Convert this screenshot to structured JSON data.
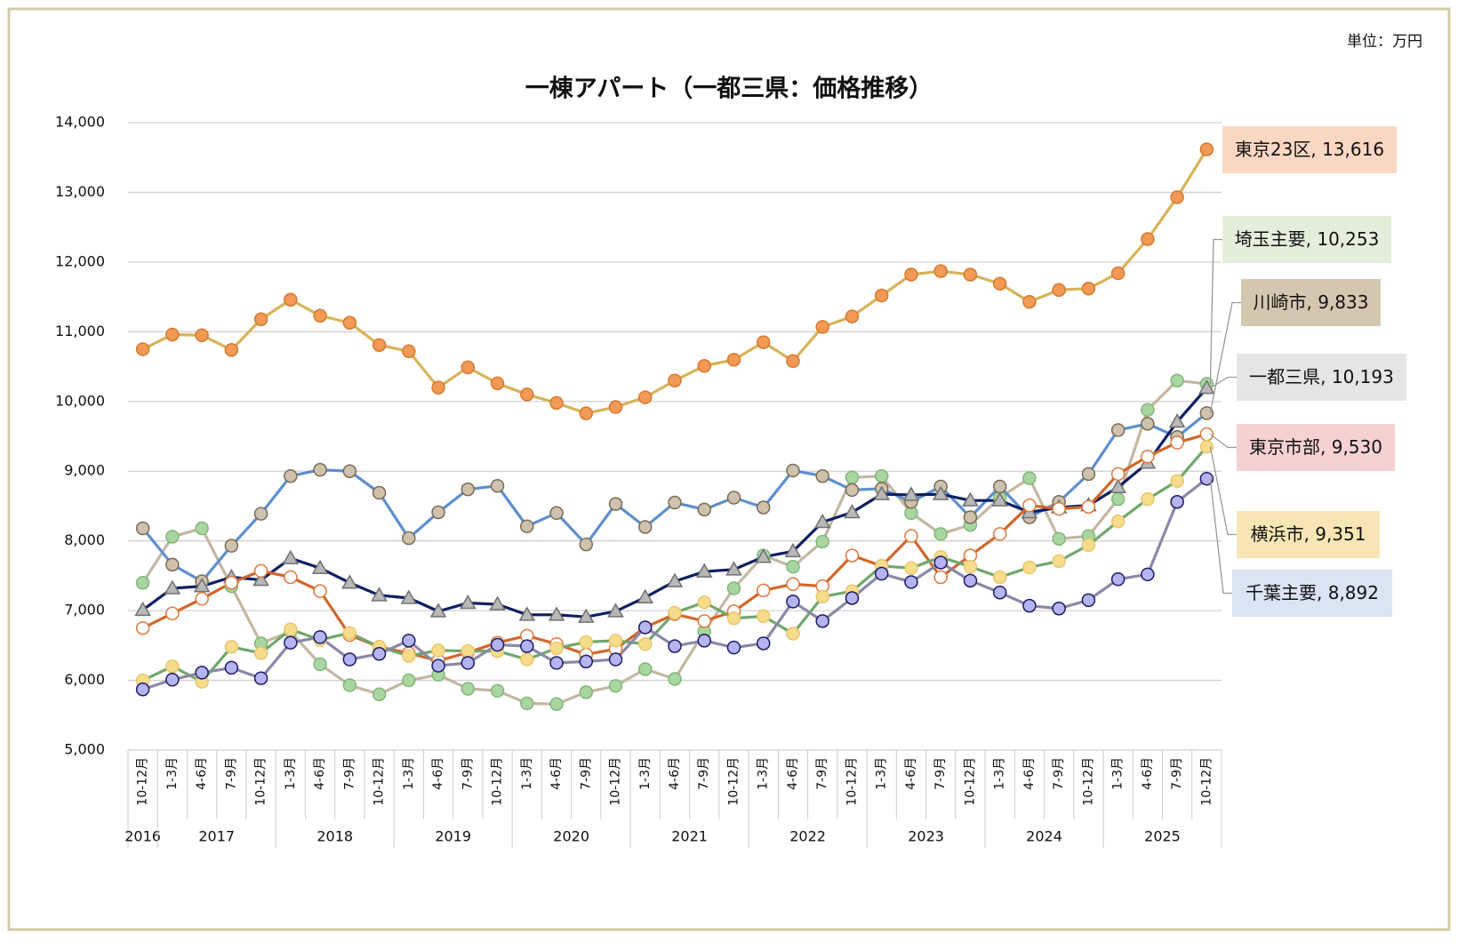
{
  "chart_data": {
    "type": "line",
    "title": "一棟アパート（一都三県：価格推移）",
    "unit_note": "単位：万円",
    "categories": [
      "10-12月",
      "1-3月",
      "4-6月",
      "7-9月",
      "10-12月",
      "1-3月",
      "4-6月",
      "7-9月",
      "10-12月",
      "1-3月",
      "4-6月",
      "7-9月",
      "10-12月",
      "1-3月",
      "4-6月",
      "7-9月",
      "10-12月",
      "1-3月",
      "4-6月",
      "7-9月",
      "10-12月",
      "1-3月",
      "4-6月",
      "7-9月",
      "10-12月",
      "1-3月",
      "4-6月",
      "7-9月",
      "10-12月",
      "1-3月",
      "4-6月",
      "7-9月",
      "10-12月",
      "1-3月",
      "4-6月",
      "7-9月",
      "10-12月"
    ],
    "x_groups": [
      {
        "label": "2016",
        "span": 1
      },
      {
        "label": "2017",
        "span": 4
      },
      {
        "label": "2018",
        "span": 4
      },
      {
        "label": "2019",
        "span": 4
      },
      {
        "label": "2020",
        "span": 4
      },
      {
        "label": "2021",
        "span": 4
      },
      {
        "label": "2022",
        "span": 4
      },
      {
        "label": "2023",
        "span": 4
      },
      {
        "label": "2024",
        "span": 4
      },
      {
        "label": "2025",
        "span": 4
      }
    ],
    "ylim": [
      5000,
      14000
    ],
    "yticks": [
      {
        "value": 5000,
        "label": "5,000"
      },
      {
        "value": 6000,
        "label": "6,000"
      },
      {
        "value": 7000,
        "label": "7,000"
      },
      {
        "value": 8000,
        "label": "8,000"
      },
      {
        "value": 9000,
        "label": "9,000"
      },
      {
        "value": 10000,
        "label": "10,000"
      },
      {
        "value": 11000,
        "label": "11,000"
      },
      {
        "value": 12000,
        "label": "12,000"
      },
      {
        "value": 13000,
        "label": "13,000"
      },
      {
        "value": 14000,
        "label": "14,000"
      }
    ],
    "grid": true,
    "series": [
      {
        "name": "東京23区",
        "end_label": "東京23区, 13,616",
        "color": "#d9b257",
        "marker": "circle",
        "marker_color": "#f29a55",
        "marker_edge": "#d8782e",
        "label_color": "#fad7c2",
        "values": [
          10750,
          10960,
          10950,
          10740,
          11180,
          11460,
          11230,
          11130,
          10810,
          10720,
          10200,
          10490,
          10260,
          10100,
          9980,
          9830,
          9920,
          10060,
          10300,
          10510,
          10600,
          10850,
          10580,
          11070,
          11220,
          11520,
          11820,
          11870,
          11820,
          11690,
          11430,
          11600,
          11620,
          11840,
          12330,
          12930,
          13616
        ]
      },
      {
        "name": "埼玉主要",
        "end_label": "埼玉主要, 10,253",
        "color": "#c4b6a0",
        "marker": "circle",
        "marker_color": "#a9d6a0",
        "marker_edge": "#7fb878",
        "label_color": "#e3efdb",
        "values": [
          7400,
          8060,
          8180,
          7350,
          6530,
          6700,
          6230,
          5930,
          5800,
          6000,
          6080,
          5880,
          5850,
          5670,
          5660,
          5830,
          5920,
          6160,
          6020,
          6700,
          7320,
          7790,
          7630,
          7990,
          8910,
          8930,
          8400,
          8100,
          8230,
          8620,
          8900,
          8030,
          8070,
          8600,
          9880,
          10300,
          10253
        ]
      },
      {
        "name": "川崎市",
        "end_label": "川崎市, 9,833",
        "color": "#5b8fd0",
        "marker": "circle",
        "marker_color": "#cfc2ad",
        "marker_edge": "#7a6a55",
        "label_color": "#d4c7af",
        "values": [
          8180,
          7660,
          7420,
          7930,
          8390,
          8930,
          9020,
          9000,
          8690,
          8040,
          8410,
          8740,
          8790,
          8210,
          8400,
          7950,
          8530,
          8200,
          8550,
          8450,
          8620,
          8480,
          9010,
          8930,
          8730,
          8750,
          8560,
          8780,
          8340,
          8780,
          8340,
          8560,
          8960,
          9590,
          9680,
          9490,
          9833
        ]
      },
      {
        "name": "一都三県",
        "end_label": "一都三県, 10,193",
        "color": "#0d1f63",
        "marker": "triangle",
        "marker_color": "#b8b8b8",
        "marker_edge": "#707070",
        "label_color": "#e5e5e5",
        "values": [
          7010,
          7320,
          7350,
          7480,
          7440,
          7750,
          7610,
          7400,
          7220,
          7180,
          6990,
          7110,
          7090,
          6940,
          6940,
          6910,
          6990,
          7190,
          7420,
          7560,
          7590,
          7770,
          7850,
          8270,
          8410,
          8670,
          8660,
          8670,
          8580,
          8580,
          8410,
          8480,
          8510,
          8770,
          9120,
          9710,
          10193
        ]
      },
      {
        "name": "東京市部",
        "end_label": "東京市部, 9,530",
        "color": "#d2662a",
        "marker": "circle",
        "marker_color": "#ffffff",
        "marker_edge": "#e0783c",
        "label_color": "#f7d1d1",
        "values": [
          6750,
          6960,
          7170,
          7400,
          7570,
          7480,
          7280,
          6650,
          6480,
          6390,
          6280,
          6400,
          6540,
          6640,
          6520,
          6370,
          6450,
          6760,
          6950,
          6850,
          6990,
          7290,
          7380,
          7350,
          7790,
          7640,
          8070,
          7480,
          7790,
          8100,
          8510,
          8460,
          8490,
          8960,
          9210,
          9410,
          9530
        ]
      },
      {
        "name": "横浜市",
        "end_label": "横浜市, 9,351",
        "color": "#6fa86a",
        "marker": "circle",
        "marker_color": "#f7dc8c",
        "marker_edge": "#e8c66e",
        "label_color": "#f7e6b4",
        "values": [
          6000,
          6200,
          5980,
          6480,
          6390,
          6730,
          6580,
          6680,
          6480,
          6350,
          6430,
          6420,
          6420,
          6300,
          6460,
          6550,
          6570,
          6520,
          6970,
          7120,
          6890,
          6920,
          6670,
          7200,
          7280,
          7640,
          7610,
          7770,
          7630,
          7480,
          7620,
          7710,
          7940,
          8280,
          8600,
          8860,
          9351
        ]
      },
      {
        "name": "千葉主要",
        "end_label": "千葉主要, 8,892",
        "color": "#8a88a8",
        "marker": "circle",
        "marker_color": "#b4b4f0",
        "marker_edge": "#1a1a66",
        "label_color": "#dbe4f3",
        "values": [
          5870,
          6010,
          6110,
          6180,
          6030,
          6540,
          6620,
          6300,
          6380,
          6570,
          6210,
          6250,
          6510,
          6490,
          6250,
          6270,
          6300,
          6760,
          6490,
          6570,
          6470,
          6530,
          7130,
          6850,
          7180,
          7530,
          7410,
          7690,
          7430,
          7260,
          7070,
          7030,
          7150,
          7450,
          7520,
          8560,
          8892
        ]
      }
    ]
  }
}
